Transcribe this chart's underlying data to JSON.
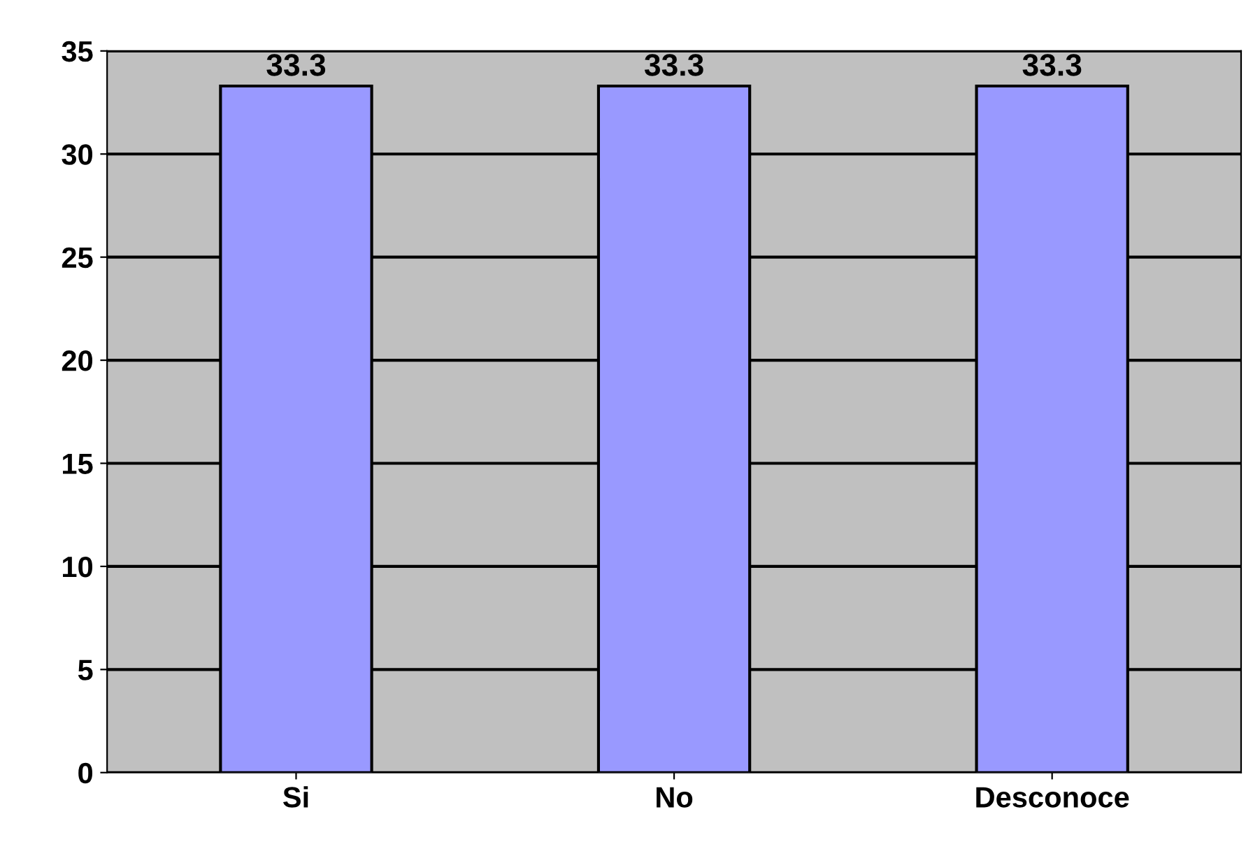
{
  "chart_data": {
    "type": "bar",
    "categories": [
      "Si",
      "No",
      "Desconoce"
    ],
    "values": [
      33.3,
      33.3,
      33.3
    ],
    "color": "#9999ff",
    "ylim": [
      0,
      35
    ],
    "yticks": [
      0,
      5,
      10,
      15,
      20,
      25,
      30,
      35
    ],
    "grid": "y",
    "data_labels": true
  }
}
